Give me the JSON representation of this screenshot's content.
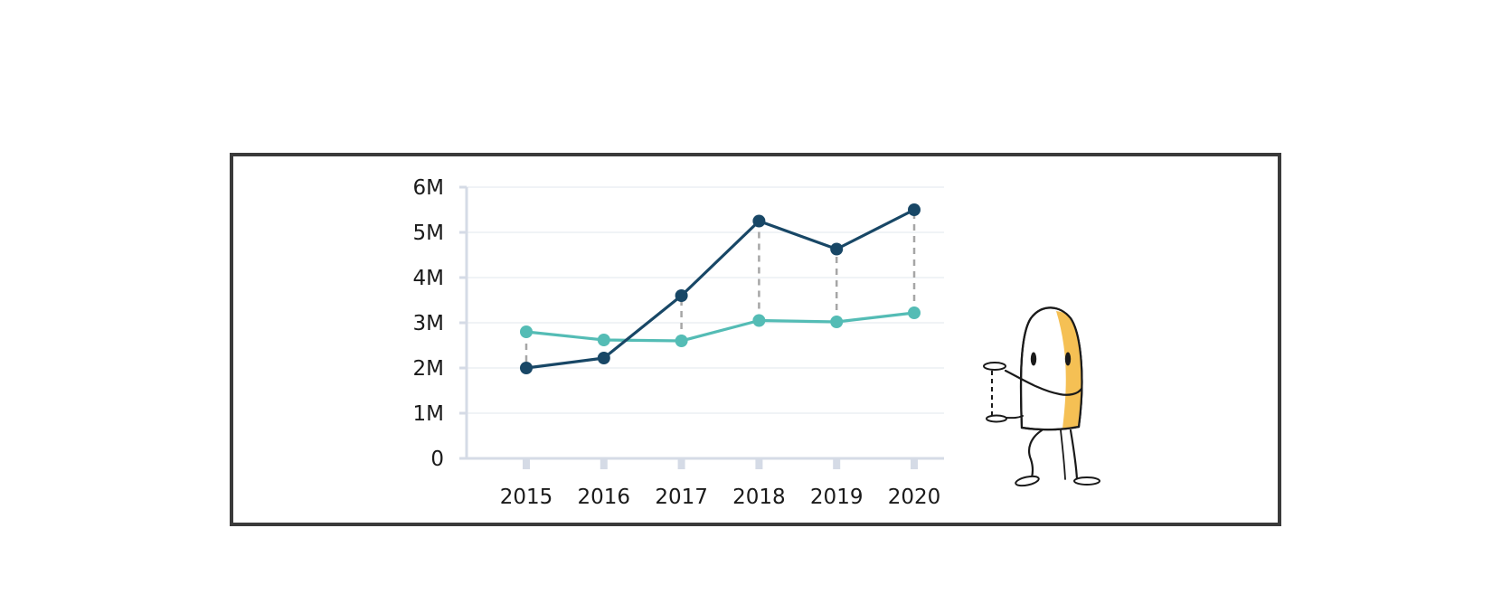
{
  "chart_data": {
    "type": "line",
    "title": "",
    "xlabel": "",
    "ylabel": "",
    "categories": [
      "2015",
      "2016",
      "2017",
      "2018",
      "2019",
      "2020"
    ],
    "y_ticks": [
      0,
      1000000,
      2000000,
      3000000,
      4000000,
      5000000,
      6000000
    ],
    "y_tick_labels": [
      "0",
      "1M",
      "2M",
      "3M",
      "4M",
      "5M",
      "6M"
    ],
    "ylim": [
      0,
      6000000
    ],
    "grid": true,
    "legend": "none",
    "series": [
      {
        "color": "#54bcb5",
        "values": [
          2800000,
          2620000,
          2600000,
          3050000,
          3020000,
          3220000
        ]
      },
      {
        "color": "#184766",
        "values": [
          2000000,
          2220000,
          3600000,
          5250000,
          4630000,
          5500000
        ]
      }
    ],
    "difference_lines": {
      "color": "#a6a6a6",
      "style": "dashed"
    }
  },
  "colors": {
    "frame": "#3a3a3a",
    "axis": "#d5dbe6",
    "grid": "#eceff4",
    "mascot_accent": "#f5c054"
  },
  "illustration": {
    "icon": "mascot-character-icon"
  }
}
